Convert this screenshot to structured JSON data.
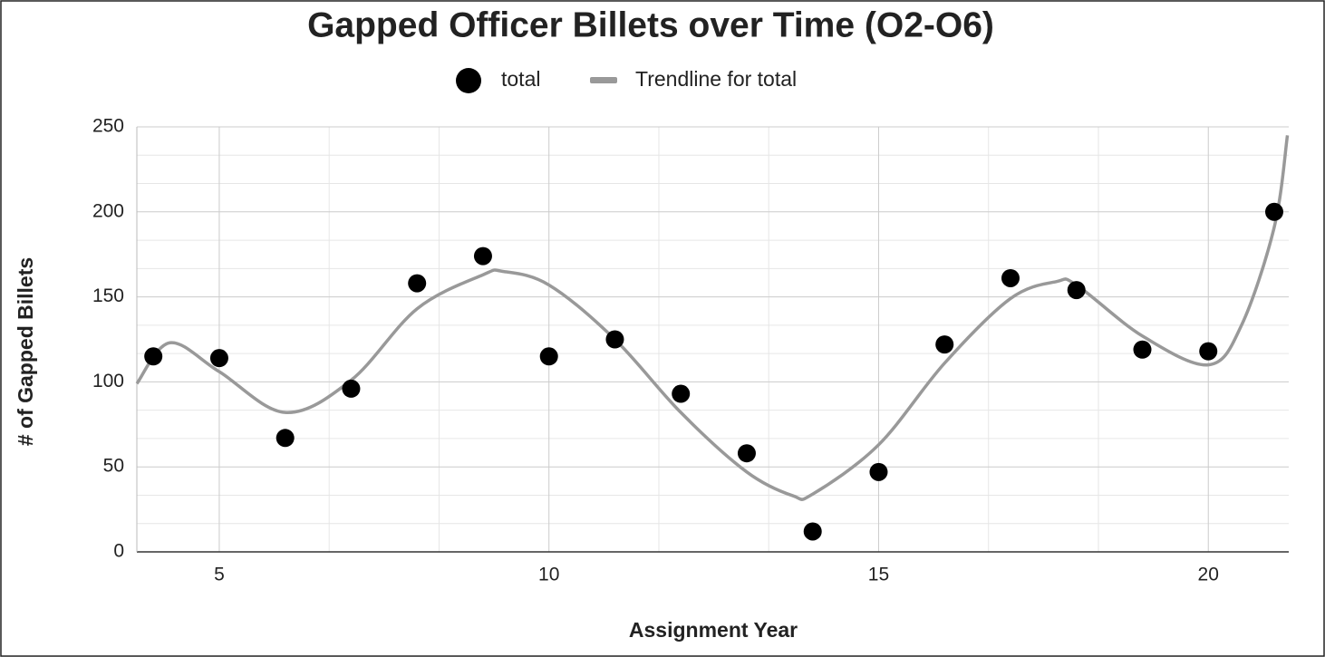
{
  "chart_data": {
    "type": "scatter",
    "title": "Gapped Officer Billets over Time (O2-O6)",
    "x_label": "Assignment Year",
    "y_label": "# of Gapped Billets",
    "xlim": [
      3.75,
      21.22
    ],
    "ylim": [
      0,
      250
    ],
    "xticks": [
      5,
      10,
      15,
      20
    ],
    "yticks": [
      0,
      50,
      100,
      150,
      200,
      250
    ],
    "grid": true,
    "minor_gridlines": 2,
    "legend": "top",
    "series": [
      {
        "name": "total",
        "type": "scatter",
        "color": "#000000",
        "x": [
          4,
          5,
          6,
          7,
          8,
          9,
          10,
          11,
          12,
          13,
          14,
          15,
          16,
          17,
          18,
          19,
          20,
          21
        ],
        "values": [
          115,
          114,
          67,
          96,
          158,
          174,
          115,
          125,
          93,
          58,
          12,
          47,
          122,
          161,
          154,
          119,
          118,
          200
        ]
      },
      {
        "name": "Trendline for total",
        "type": "line",
        "color": "#999999",
        "x": [
          3.75,
          4.25,
          5,
          6,
          7,
          8,
          9,
          9.3,
          10,
          11,
          12,
          13,
          13.7,
          14,
          15,
          16,
          17,
          17.7,
          18,
          19,
          20,
          20.5,
          21,
          21.2
        ],
        "values": [
          99,
          123,
          106,
          82,
          101,
          143,
          163,
          165,
          157,
          125,
          82,
          47,
          33,
          34,
          63,
          111,
          149,
          159,
          157,
          127,
          110,
          133,
          191,
          245
        ]
      }
    ]
  }
}
